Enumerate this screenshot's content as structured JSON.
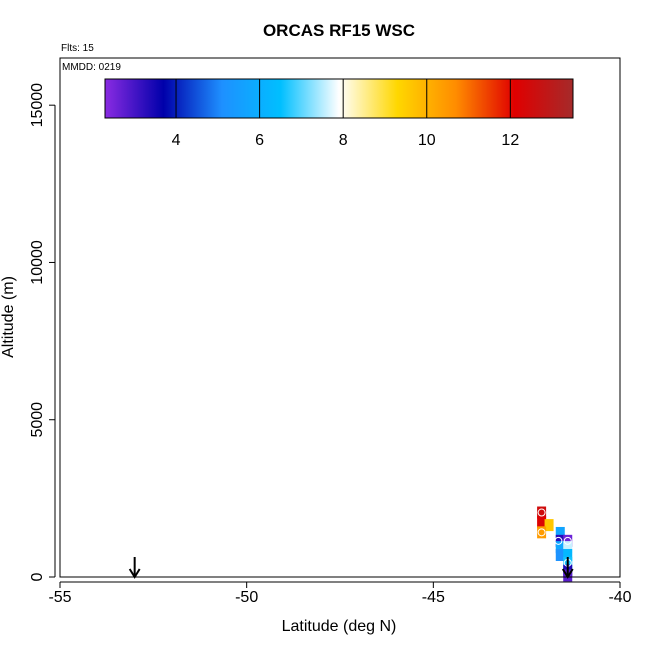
{
  "chart_data": {
    "type": "scatter",
    "title": "ORCAS RF15 WSC",
    "xlabel": "Latitude (deg N)",
    "ylabel": "Altitude (m)",
    "xlim": [
      -55,
      -40
    ],
    "ylim": [
      0,
      16500
    ],
    "x_ticks": [
      -55,
      -50,
      -45,
      -40
    ],
    "x_tick_labels": [
      "-55",
      "-50",
      "-45",
      "-40"
    ],
    "y_ticks": [
      0,
      5000,
      10000,
      15000
    ],
    "y_tick_labels": [
      "0",
      "5000",
      "10000",
      "15000"
    ],
    "annotations": {
      "flights": "Flts: 15",
      "date": "MMDD: 0219"
    },
    "colorbar": {
      "range": [
        2.3,
        13.5
      ],
      "ticks": [
        4,
        6,
        8,
        10,
        12
      ],
      "tick_labels": [
        "4",
        "6",
        "8",
        "10",
        "12"
      ],
      "colors": [
        "#8a2be2",
        "#0000aa",
        "#1e90ff",
        "#00bfff",
        "#ffffff",
        "#ffd700",
        "#ff8c00",
        "#e00000",
        "#a52a2a"
      ]
    },
    "points": [
      {
        "x": -42.1,
        "y": 2050,
        "value": 12.5
      },
      {
        "x": -42.1,
        "y": 1750,
        "value": 12.2
      },
      {
        "x": -41.9,
        "y": 1650,
        "value": 9.6
      },
      {
        "x": -42.1,
        "y": 1420,
        "value": 10.4
      },
      {
        "x": -41.6,
        "y": 1400,
        "value": 5.7
      },
      {
        "x": -41.6,
        "y": 1150,
        "value": 3.3
      },
      {
        "x": -41.4,
        "y": 1150,
        "value": 2.6
      },
      {
        "x": -41.6,
        "y": 950,
        "value": 5.8
      },
      {
        "x": -41.4,
        "y": 950,
        "value": 7.6
      },
      {
        "x": -41.6,
        "y": 700,
        "value": 5.2
      },
      {
        "x": -41.4,
        "y": 700,
        "value": 6.3
      },
      {
        "x": -41.4,
        "y": 450,
        "value": 6.6
      },
      {
        "x": -41.4,
        "y": 200,
        "value": 3.4
      },
      {
        "x": -41.4,
        "y": 50,
        "value": 2.8
      }
    ],
    "circle_markers": [
      {
        "x": -42.1,
        "y": 2050
      },
      {
        "x": -42.1,
        "y": 1420
      },
      {
        "x": -41.65,
        "y": 1150
      },
      {
        "x": -41.4,
        "y": 1150
      },
      {
        "x": -41.4,
        "y": 450
      }
    ],
    "arrows": [
      {
        "x": -53.0
      },
      {
        "x": -41.4
      }
    ]
  }
}
